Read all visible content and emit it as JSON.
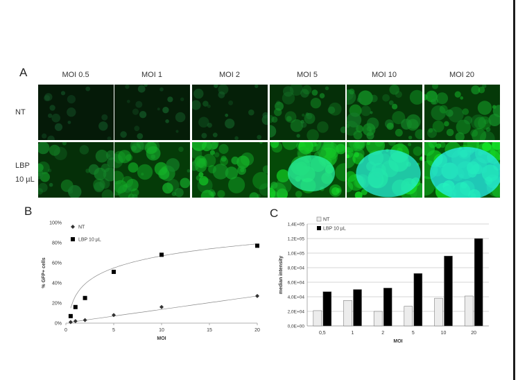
{
  "figure": {
    "panel_a": {
      "letter": "A",
      "columns": [
        "MOI 0.5",
        "MOI 1",
        "MOI 2",
        "MOI 5",
        "MOI 10",
        "MOI 20"
      ],
      "rows": [
        {
          "label_line1": "NT",
          "label_line2": ""
        },
        {
          "label_line1": "LBP",
          "label_line2": "10 µL"
        }
      ],
      "brightness": [
        [
          0.1,
          0.15,
          0.2,
          0.45,
          0.55,
          0.62
        ],
        [
          0.45,
          0.65,
          0.75,
          0.9,
          0.97,
          1.0
        ]
      ]
    },
    "panel_b": {
      "letter": "B"
    },
    "panel_c": {
      "letter": "C"
    }
  },
  "chart_data": [
    {
      "type": "scatter",
      "xlabel": "MOI",
      "ylabel": "% GFP+ cells",
      "xlim": [
        0,
        20
      ],
      "ylim": [
        0,
        100
      ],
      "x_ticks": [
        "0",
        "5",
        "10",
        "15",
        "20"
      ],
      "y_ticks": [
        "0%",
        "20%",
        "40%",
        "60%",
        "80%",
        "100%"
      ],
      "legend_position": "top-left",
      "trendlines": true,
      "series": [
        {
          "name": "NT",
          "marker": "diamond",
          "x": [
            0.5,
            1,
            2,
            5,
            10,
            20
          ],
          "y": [
            1,
            2,
            3,
            8,
            16,
            27
          ]
        },
        {
          "name": "LBP 10 µL",
          "marker": "square",
          "x": [
            0.5,
            1,
            2,
            5,
            10,
            20
          ],
          "y": [
            7,
            16,
            25,
            51,
            68,
            77
          ]
        }
      ]
    },
    {
      "type": "bar",
      "xlabel": "MOI",
      "ylabel": "median intensity",
      "categories": [
        "0,5",
        "1",
        "2",
        "5",
        "10",
        "20"
      ],
      "ylim": [
        0,
        140000
      ],
      "y_ticks": [
        "0,0E+00",
        "2,0E+04",
        "4,0E+04",
        "6,0E+04",
        "8,0E+04",
        "1,0E+05",
        "1,2E+05",
        "1,4E+05"
      ],
      "legend_position": "top-left",
      "grid": true,
      "series": [
        {
          "name": "NT",
          "color": "#ececec",
          "values": [
            21000,
            35000,
            20000,
            27000,
            38000,
            41000
          ]
        },
        {
          "name": "LBP 10 µL",
          "color": "#000000",
          "values": [
            47000,
            50000,
            52000,
            72000,
            96000,
            120000
          ]
        }
      ]
    }
  ]
}
